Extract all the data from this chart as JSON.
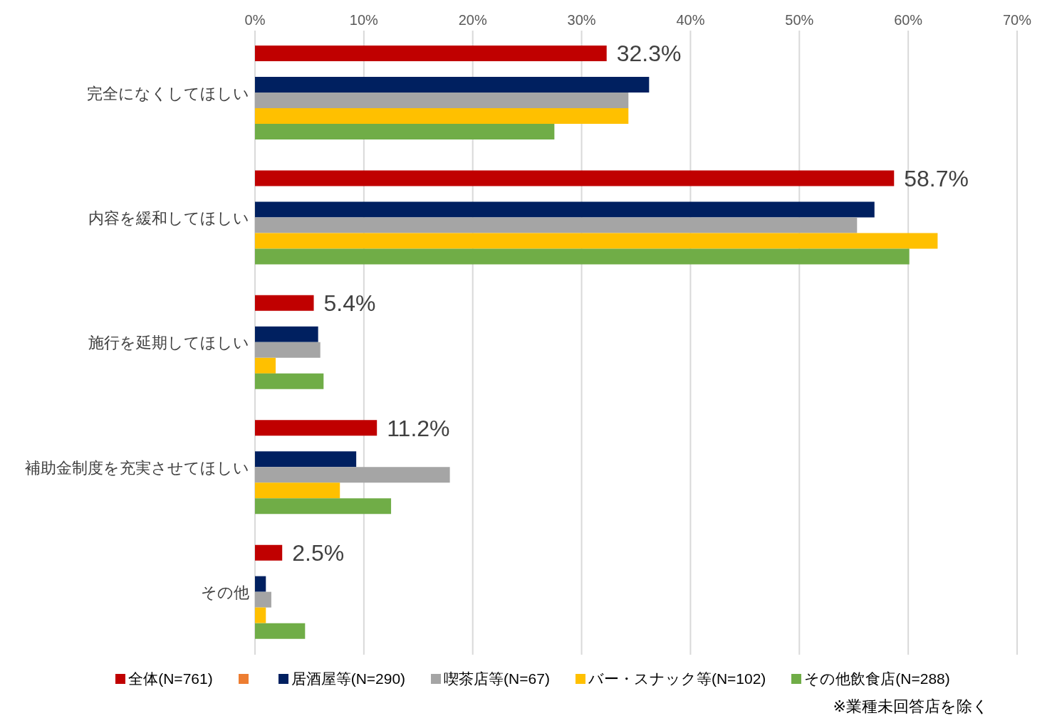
{
  "chart_data": {
    "type": "bar",
    "orientation": "horizontal",
    "categories": [
      "完全になくしてほしい",
      "内容を緩和してほしい",
      "施行を延期してほしい",
      "補助金制度を充実させてほしい",
      "その他"
    ],
    "series": [
      {
        "name": "全体(N=761)",
        "color": "#c00000",
        "values": [
          32.3,
          58.7,
          5.4,
          11.2,
          2.5
        ],
        "value_labels": [
          "32.3%",
          "58.7%",
          "5.4%",
          "11.2%",
          "2.5%"
        ]
      },
      {
        "color": "#ed7d31",
        "values": [
          null,
          null,
          null,
          null,
          null
        ]
      },
      {
        "name": "居酒屋等(N=290)",
        "color": "#002060",
        "values": [
          36.2,
          56.9,
          5.8,
          9.3,
          1.0
        ]
      },
      {
        "name": "喫茶店等(N=67)",
        "color": "#a5a5a5",
        "values": [
          34.3,
          55.3,
          6.0,
          17.9,
          1.5
        ]
      },
      {
        "name": "バー・スナック等(N=102)",
        "color": "#ffc000",
        "values": [
          34.3,
          62.7,
          1.9,
          7.8,
          1.0
        ]
      },
      {
        "name": "その他飲食店(N=288)",
        "color": "#70ad47",
        "values": [
          27.5,
          60.1,
          6.3,
          12.5,
          4.6
        ]
      }
    ],
    "xlim": [
      0,
      70
    ],
    "xticks": [
      {
        "value": 0,
        "label": "0%"
      },
      {
        "value": 10,
        "label": "10%"
      },
      {
        "value": 20,
        "label": "20%"
      },
      {
        "value": 30,
        "label": "30%"
      },
      {
        "value": 40,
        "label": "40%"
      },
      {
        "value": 50,
        "label": "50%"
      },
      {
        "value": 60,
        "label": "60%"
      },
      {
        "value": 70,
        "label": "70%"
      }
    ],
    "grid": "x",
    "legend": "bottom",
    "annotations": [
      "※業種未回答店を除く"
    ]
  }
}
